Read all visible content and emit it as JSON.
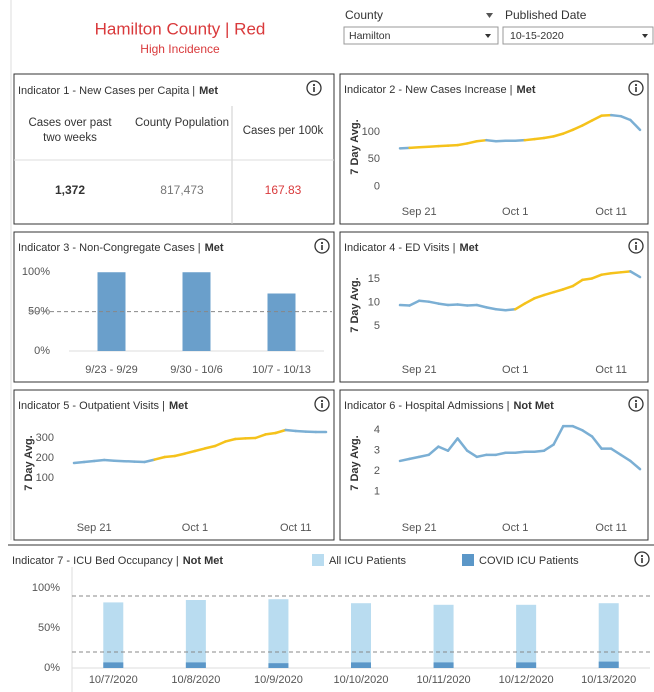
{
  "header": {
    "title": "Hamilton County | Red",
    "subtitle": "High Incidence"
  },
  "filters": [
    {
      "label": "County",
      "value": "Hamilton"
    },
    {
      "label": "Published Date",
      "value": "10-15-2020"
    }
  ],
  "indicator_1": {
    "title": "Indicator 1 - New Cases per Capita |",
    "status": "Met",
    "table": {
      "headers": [
        "Cases over past two weeks",
        "County Population",
        "Cases per 100k"
      ],
      "rows": [
        [
          "1,372",
          "817,473",
          "167.83"
        ]
      ]
    }
  },
  "chart_data": [
    {
      "type": "line",
      "title": "Indicator 2 - New Cases Increase |",
      "status": "Met",
      "y_label": "7 Day Avg.",
      "x": [
        "Sep 19",
        "Sep 20",
        "Sep 21",
        "Sep 22",
        "Sep 23",
        "Sep 24",
        "Sep 25",
        "Sep 26",
        "Sep 27",
        "Sep 28",
        "Sep 29",
        "Sep 30",
        "Oct 1",
        "Oct 2",
        "Oct 3",
        "Oct 4",
        "Oct 5",
        "Oct 6",
        "Oct 7",
        "Oct 8",
        "Oct 9",
        "Oct 10",
        "Oct 11",
        "Oct 12",
        "Oct 13",
        "Oct 14"
      ],
      "xticks": [
        "Sep 21",
        "Oct 1",
        "Oct 11"
      ],
      "values": [
        70,
        71,
        72,
        73,
        74,
        75,
        76,
        79,
        83,
        85,
        83,
        84,
        84,
        85,
        87,
        89,
        92,
        97,
        104,
        112,
        121,
        130,
        131,
        129,
        122,
        104
      ],
      "point_colors": [
        "#7bafd4",
        "#f5c21b",
        "#f5c21b",
        "#f5c21b",
        "#f5c21b",
        "#f5c21b",
        "#f5c21b",
        "#f5c21b",
        "#f5c21b",
        "#7bafd4",
        "#7bafd4",
        "#7bafd4",
        "#7bafd4",
        "#f5c21b",
        "#f5c21b",
        "#f5c21b",
        "#f5c21b",
        "#f5c21b",
        "#f5c21b",
        "#f5c21b",
        "#f5c21b",
        "#f5c21b",
        "#7bafd4",
        "#7bafd4",
        "#7bafd4",
        "#7bafd4"
      ],
      "ylim": [
        -10,
        155
      ],
      "yticks": [
        0,
        50,
        100
      ]
    },
    {
      "type": "bar",
      "title": "Indicator 3 - Non-Congregate Cases |",
      "status": "Met",
      "categories": [
        "9/23 - 9/29",
        "9/30 - 10/6",
        "10/7 - 10/13"
      ],
      "values": [
        100,
        100,
        73
      ],
      "color": "#6a9fcb",
      "ylim": [
        0,
        113
      ],
      "yticks": [
        {
          "value": 0,
          "label": "0%"
        },
        {
          "value": 50,
          "label": "50%"
        },
        {
          "value": 100,
          "label": "100%"
        }
      ],
      "thresholds": [
        50
      ]
    },
    {
      "type": "line",
      "title": "Indicator 4 - ED Visits |",
      "status": "Met",
      "y_label": "7 Day Avg.",
      "x": [
        "Sep 19",
        "Sep 20",
        "Sep 21",
        "Sep 22",
        "Sep 23",
        "Sep 24",
        "Sep 25",
        "Sep 26",
        "Sep 27",
        "Sep 28",
        "Sep 29",
        "Sep 30",
        "Oct 1",
        "Oct 2",
        "Oct 3",
        "Oct 4",
        "Oct 5",
        "Oct 6",
        "Oct 7",
        "Oct 8",
        "Oct 9",
        "Oct 10",
        "Oct 11",
        "Oct 12",
        "Oct 13",
        "Oct 14"
      ],
      "xticks": [
        "Sep 21",
        "Oct 1",
        "Oct 11"
      ],
      "values": [
        9.5,
        9.4,
        10.4,
        10.2,
        9.8,
        9.5,
        9.6,
        9.4,
        9.5,
        9.0,
        8.6,
        8.4,
        8.6,
        9.8,
        10.9,
        11.6,
        12.2,
        12.8,
        13.5,
        14.8,
        15.1,
        15.9,
        16.2,
        16.4,
        16.6,
        15.4
      ],
      "point_colors": [
        "#7bafd4",
        "#7bafd4",
        "#7bafd4",
        "#7bafd4",
        "#7bafd4",
        "#7bafd4",
        "#7bafd4",
        "#7bafd4",
        "#7bafd4",
        "#7bafd4",
        "#7bafd4",
        "#7bafd4",
        "#f5c21b",
        "#f5c21b",
        "#f5c21b",
        "#f5c21b",
        "#f5c21b",
        "#f5c21b",
        "#f5c21b",
        "#f5c21b",
        "#f5c21b",
        "#f5c21b",
        "#f5c21b",
        "#f5c21b",
        "#7bafd4",
        "#7bafd4"
      ],
      "ylim": [
        0,
        19
      ],
      "yticks": [
        5,
        10,
        15
      ]
    },
    {
      "type": "line",
      "title": "Indicator 5 - Outpatient Visits |",
      "status": "Met",
      "y_label": "7 Day Avg.",
      "x": [
        "Sep 19",
        "Sep 20",
        "Sep 21",
        "Sep 22",
        "Sep 23",
        "Sep 24",
        "Sep 25",
        "Sep 26",
        "Sep 27",
        "Sep 28",
        "Sep 29",
        "Sep 30",
        "Oct 1",
        "Oct 2",
        "Oct 3",
        "Oct 4",
        "Oct 5",
        "Oct 6",
        "Oct 7",
        "Oct 8",
        "Oct 9",
        "Oct 10",
        "Oct 11",
        "Oct 12",
        "Oct 13",
        "Oct 14"
      ],
      "xticks": [
        "Sep 21",
        "Oct 1",
        "Oct 11"
      ],
      "values": [
        175,
        180,
        185,
        190,
        186,
        184,
        182,
        180,
        192,
        205,
        210,
        222,
        235,
        248,
        260,
        282,
        295,
        298,
        300,
        318,
        325,
        340,
        335,
        332,
        330,
        330
      ],
      "point_colors": [
        "#7bafd4",
        "#7bafd4",
        "#7bafd4",
        "#7bafd4",
        "#7bafd4",
        "#7bafd4",
        "#7bafd4",
        "#7bafd4",
        "#f5c21b",
        "#f5c21b",
        "#f5c21b",
        "#f5c21b",
        "#f5c21b",
        "#f5c21b",
        "#f5c21b",
        "#f5c21b",
        "#f5c21b",
        "#f5c21b",
        "#f5c21b",
        "#f5c21b",
        "#f5c21b",
        "#7bafd4",
        "#7bafd4",
        "#7bafd4",
        "#7bafd4",
        "#7bafd4"
      ],
      "ylim": [
        -50,
        400
      ],
      "yticks": [
        100,
        200,
        300
      ]
    },
    {
      "type": "line",
      "title": "Indicator 6 - Hospital Admissions |",
      "status": "Not Met",
      "y_label": "7 Day Avg.",
      "x": [
        "Sep 19",
        "Sep 20",
        "Sep 21",
        "Sep 22",
        "Sep 23",
        "Sep 24",
        "Sep 25",
        "Sep 26",
        "Sep 27",
        "Sep 28",
        "Sep 29",
        "Sep 30",
        "Oct 1",
        "Oct 2",
        "Oct 3",
        "Oct 4",
        "Oct 5",
        "Oct 6",
        "Oct 7",
        "Oct 8",
        "Oct 9",
        "Oct 10",
        "Oct 11",
        "Oct 12",
        "Oct 13",
        "Oct 14"
      ],
      "xticks": [
        "Sep 21",
        "Oct 1",
        "Oct 11"
      ],
      "values": [
        2.5,
        2.6,
        2.7,
        2.8,
        3.2,
        3.0,
        3.6,
        3.0,
        2.7,
        2.8,
        2.8,
        2.9,
        2.9,
        2.95,
        2.95,
        3.0,
        3.3,
        4.2,
        4.2,
        4.0,
        3.7,
        3.1,
        3.1,
        2.8,
        2.5,
        2.1
      ],
      "point_colors": [
        "#7bafd4",
        "#7bafd4",
        "#7bafd4",
        "#7bafd4",
        "#7bafd4",
        "#7bafd4",
        "#7bafd4",
        "#7bafd4",
        "#7bafd4",
        "#7bafd4",
        "#7bafd4",
        "#7bafd4",
        "#7bafd4",
        "#7bafd4",
        "#7bafd4",
        "#7bafd4",
        "#7bafd4",
        "#7bafd4",
        "#7bafd4",
        "#7bafd4",
        "#7bafd4",
        "#7bafd4",
        "#7bafd4",
        "#7bafd4",
        "#7bafd4",
        "#7bafd4"
      ],
      "ylim": [
        0.2,
        4.6
      ],
      "yticks": [
        1,
        2,
        3,
        4
      ]
    },
    {
      "type": "bar",
      "title": "Indicator 7 - ICU Bed Occupancy |",
      "status": "Not Met",
      "categories": [
        "10/7/2020",
        "10/8/2020",
        "10/9/2020",
        "10/10/2020",
        "10/11/2020",
        "10/12/2020",
        "10/13/2020"
      ],
      "series": [
        {
          "name": "All ICU Patients",
          "color": "#b9dcf0",
          "values": [
            82,
            85,
            86,
            81,
            79,
            79,
            81
          ]
        },
        {
          "name": "COVID ICU Patients",
          "color": "#5b97c8",
          "values": [
            7,
            7,
            6,
            7,
            7,
            7,
            8
          ]
        }
      ],
      "ylim": [
        0,
        120
      ],
      "yticks": [
        {
          "value": 0,
          "label": "0%"
        },
        {
          "value": 50,
          "label": "50%"
        },
        {
          "value": 100,
          "label": "100%"
        }
      ],
      "thresholds": [
        20,
        90
      ]
    }
  ]
}
